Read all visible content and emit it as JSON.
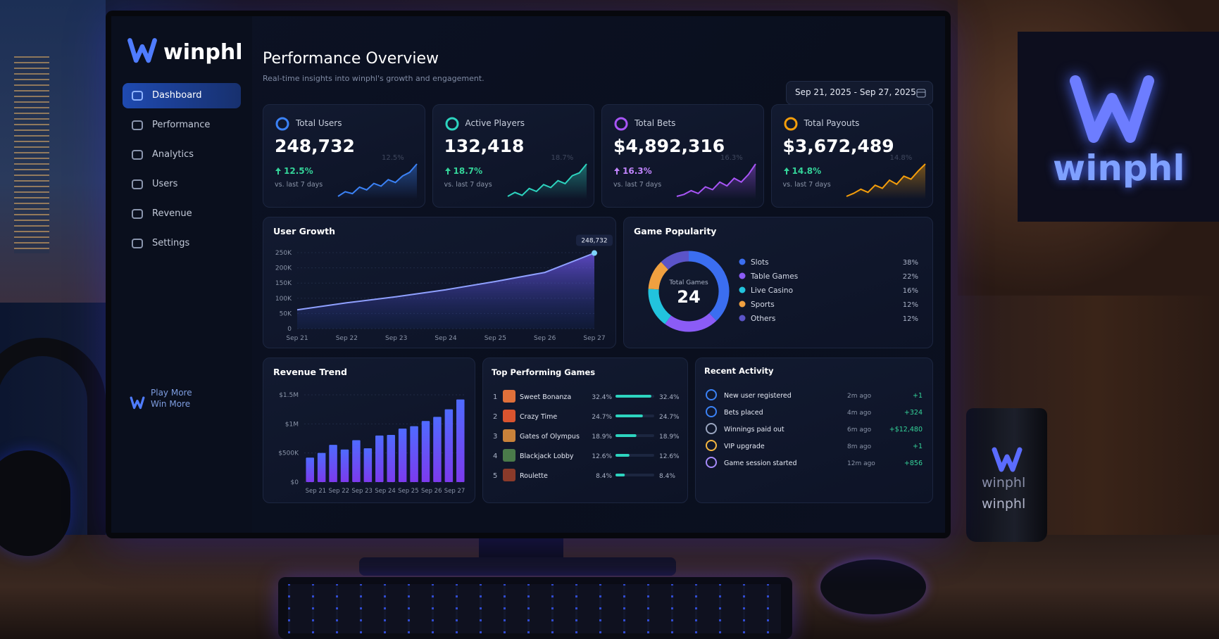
{
  "brand": "winphl",
  "nav": [
    "Dashboard",
    "Performance",
    "Analytics",
    "Users",
    "Revenue",
    "Settings"
  ],
  "tagline": [
    "Play More",
    "Win More"
  ],
  "header": {
    "title": "Performance Overview",
    "subtitle": "Real-time insights into winphl's growth and engagement.",
    "date_range": "Sep 21, 2025 - Sep 27, 2025"
  },
  "kpis": [
    {
      "label": "Total Users",
      "value": "248,732",
      "change": "12.5%",
      "note": "vs. last 7 days",
      "color": "#3b82f6",
      "trend": [
        3,
        4,
        3.6,
        5,
        4.4,
        5.8,
        5.2,
        6.6,
        6,
        7.4,
        8.2,
        10
      ]
    },
    {
      "label": "Active Players",
      "value": "132,418",
      "change": "18.7%",
      "note": "vs. last 7 days",
      "color": "#2dd4bf",
      "trend": [
        3,
        3.8,
        3.2,
        4.6,
        4,
        5.4,
        4.8,
        6.2,
        5.6,
        7.2,
        7.8,
        9.6
      ]
    },
    {
      "label": "Total Bets",
      "value": "$4,892,316",
      "change": "16.3%",
      "note": "vs. last 7 days",
      "color": "#a855f7",
      "trend": [
        3,
        3.4,
        4.2,
        3.6,
        5,
        4.4,
        6,
        5.2,
        6.8,
        6,
        7.6,
        9.8
      ]
    },
    {
      "label": "Total Payouts",
      "value": "$3,672,489",
      "change": "14.8%",
      "note": "vs. last 7 days",
      "color": "#f59e0b",
      "trend": [
        3,
        3.6,
        4.4,
        3.8,
        5.2,
        4.6,
        6.2,
        5.4,
        7,
        6.4,
        8,
        9.4
      ]
    }
  ],
  "chart_data": [
    {
      "type": "area",
      "title": "User Growth",
      "categories": [
        "Sep 21",
        "Sep 22",
        "Sep 23",
        "Sep 24",
        "Sep 25",
        "Sep 26",
        "Sep 27"
      ],
      "series": [
        {
          "values": [
            62000,
            85000,
            105000,
            128000,
            155000,
            185000,
            248732
          ],
          "value_labels": [
            null,
            null,
            null,
            null,
            null,
            null,
            "248,732"
          ],
          "color": "#7c5cff"
        }
      ],
      "ylim": [
        0,
        250000
      ],
      "yticks": [
        0,
        {
          "value": 50000,
          "label": "50K"
        },
        {
          "value": 100000,
          "label": "100K"
        },
        {
          "value": 150000,
          "label": "150K"
        },
        {
          "value": 200000,
          "label": "200K"
        },
        {
          "value": 250000,
          "label": "250K"
        }
      ]
    },
    {
      "type": "bar",
      "title": "Revenue Trend",
      "categories": [
        "Sep 21",
        null,
        "Sep 22",
        null,
        "Sep 23",
        null,
        "Sep 24",
        null,
        "Sep 25",
        null,
        "Sep 26",
        null,
        "Sep 27",
        null
      ],
      "values": [
        420000,
        500000,
        640000,
        560000,
        720000,
        580000,
        800000,
        810000,
        920000,
        960000,
        1050000,
        1120000,
        1250000,
        1420000
      ],
      "color": "#4f6bff",
      "ylim": [
        0,
        1500000
      ],
      "yticks": [
        {
          "value": 0,
          "label": "$0"
        },
        {
          "value": 500000,
          "label": "$500K"
        },
        {
          "value": 1000000,
          "label": "$1M"
        },
        {
          "value": 1500000,
          "label": "$1.5M"
        }
      ]
    },
    {
      "type": "donut",
      "title": "Game Popularity",
      "center_label": "Total Games",
      "center_value": 24,
      "categories": [
        "Slots",
        "Table Games",
        "Live Casino",
        "Sports",
        "Others"
      ],
      "values": [
        38,
        22,
        16,
        12,
        12
      ],
      "value_labels": [
        "38%",
        "22%",
        "16%",
        "12%",
        "12%"
      ],
      "colors": [
        "#3b6ef0",
        "#8b5cf6",
        "#22c3dd",
        "#f0a040",
        "#5b54c8"
      ]
    }
  ],
  "top_games": {
    "title": "Top Performing Games",
    "xlim": [
      0,
      35
    ],
    "rows": [
      {
        "rank": 1,
        "name": "Sweet Bonanza",
        "value": 32.4,
        "label": "32.4%"
      },
      {
        "rank": 2,
        "name": "Crazy Time",
        "value": 24.7,
        "label": "24.7%"
      },
      {
        "rank": 3,
        "name": "Gates of Olympus",
        "value": 18.9,
        "label": "18.9%"
      },
      {
        "rank": 4,
        "name": "Blackjack Lobby",
        "value": 12.6,
        "label": "12.6%"
      },
      {
        "rank": 5,
        "name": "Roulette",
        "value": 8.4,
        "label": "8.4%"
      }
    ]
  },
  "recent_activity": {
    "title": "Recent Activity",
    "rows": [
      {
        "event": "New user registered",
        "time": "2m ago",
        "amount": "+1"
      },
      {
        "event": "Bets placed",
        "time": "4m ago",
        "amount": "+324"
      },
      {
        "event": "Winnings paid out",
        "time": "6m ago",
        "amount": "+$12,480"
      },
      {
        "event": "VIP upgrade",
        "time": "8m ago",
        "amount": "+1"
      },
      {
        "event": "Game session started",
        "time": "12m ago",
        "amount": "+856"
      }
    ]
  }
}
